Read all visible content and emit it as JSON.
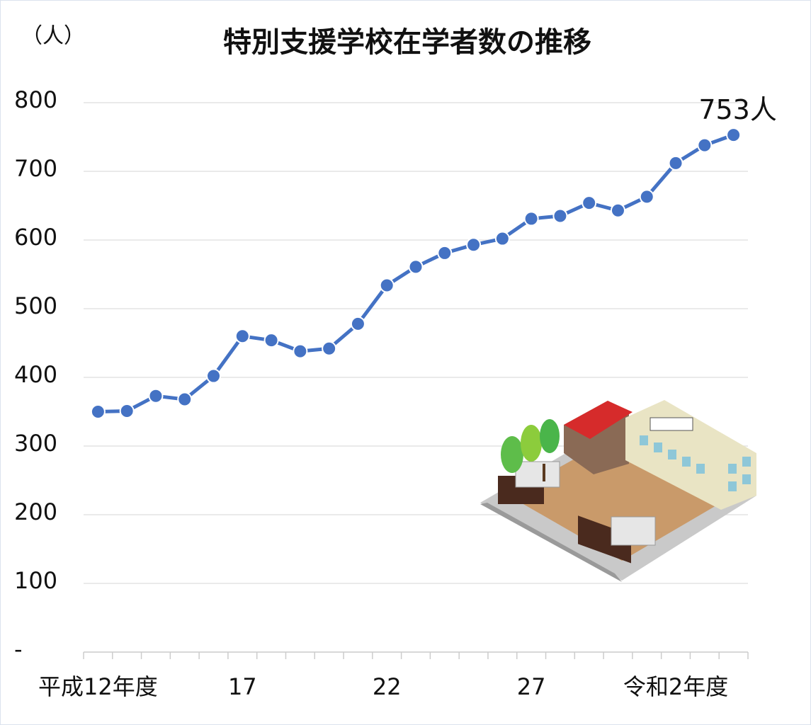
{
  "chart_data": {
    "type": "line",
    "title": "特別支援学校在学者数の推移",
    "y_label": "（人）",
    "categories": [
      "平成12年度",
      null,
      null,
      null,
      null,
      "17",
      null,
      null,
      null,
      null,
      "22",
      null,
      null,
      null,
      null,
      "27",
      null,
      null,
      null,
      null,
      "令和2年度",
      null,
      null
    ],
    "values": [
      350,
      351,
      373,
      368,
      402,
      460,
      454,
      438,
      442,
      478,
      534,
      561,
      581,
      593,
      602,
      631,
      635,
      654,
      643,
      663,
      712,
      738,
      753
    ],
    "value_labels": [
      null,
      null,
      null,
      null,
      null,
      null,
      null,
      null,
      null,
      null,
      null,
      null,
      null,
      null,
      null,
      null,
      null,
      null,
      null,
      null,
      null,
      null,
      "753人"
    ],
    "color": "#4472c4",
    "ylim": [
      0,
      800
    ],
    "yticks": [
      {
        "value": 0,
        "label": "-"
      },
      100,
      200,
      300,
      400,
      500,
      600,
      700,
      800
    ],
    "grid": true
  }
}
